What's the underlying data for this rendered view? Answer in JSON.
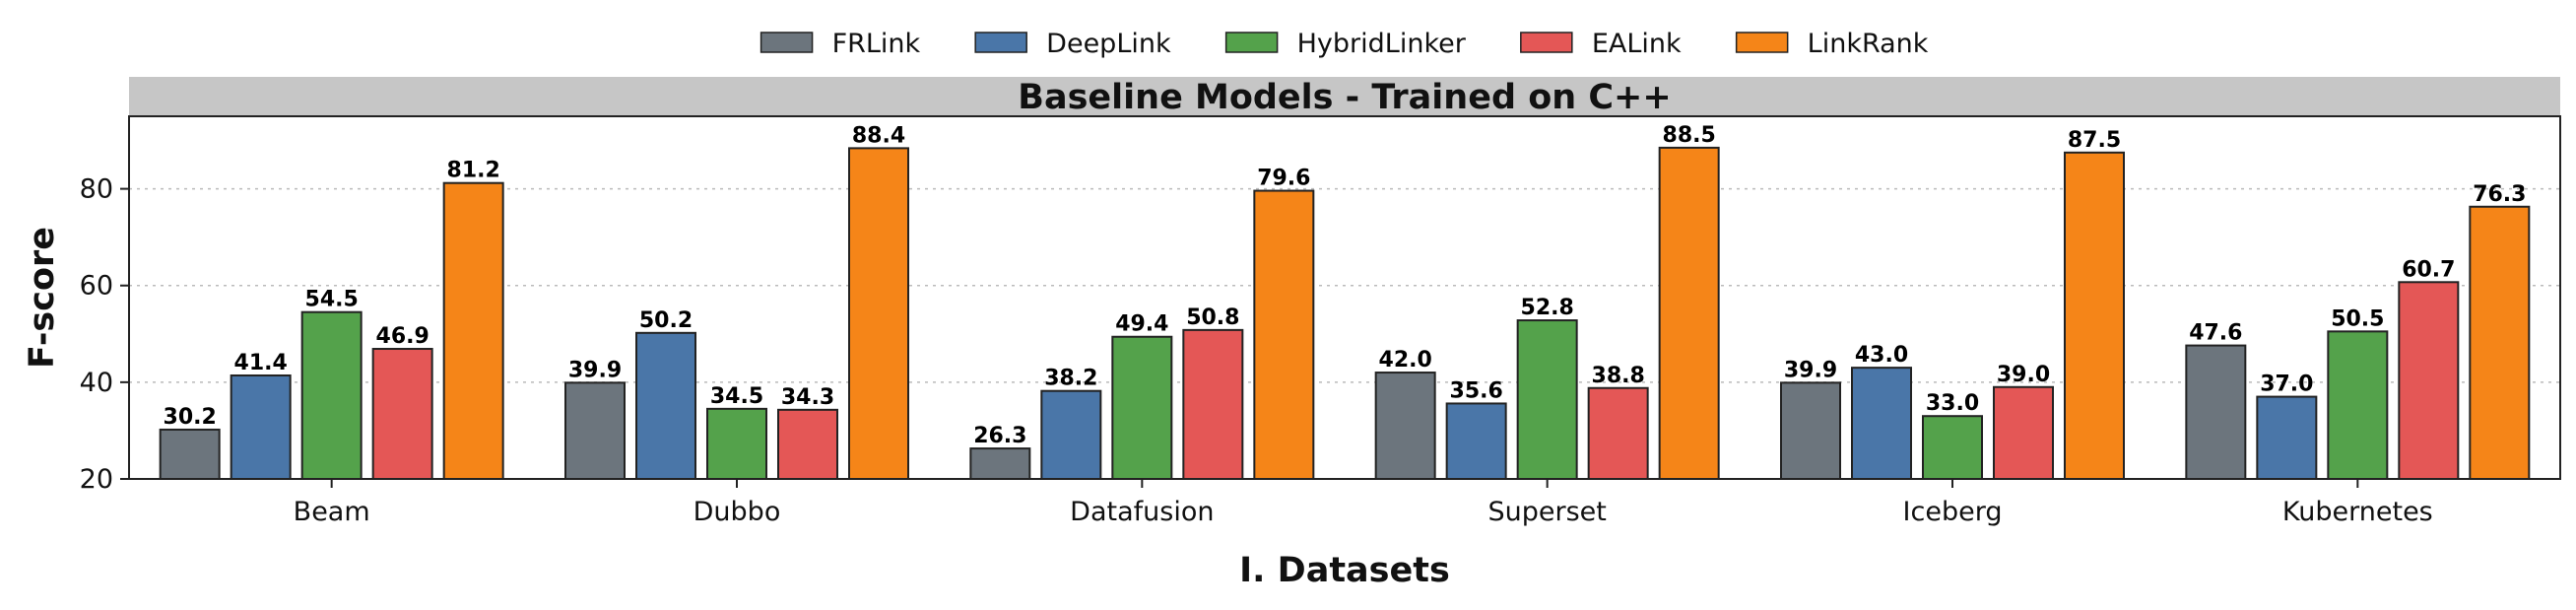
{
  "chart_data": {
    "type": "bar",
    "title": "Baseline Models - Trained on C++",
    "xlabel": "I. Datasets",
    "ylabel": "F-score",
    "ylim": [
      20,
      95
    ],
    "yticks": [
      20,
      40,
      60,
      80
    ],
    "grid": true,
    "legend_position": "top-center",
    "categories": [
      "Beam",
      "Dubbo",
      "Datafusion",
      "Superset",
      "Iceberg",
      "Kubernetes"
    ],
    "series": [
      {
        "name": "FRLink",
        "color": "#6c757d",
        "values": [
          30.2,
          39.9,
          26.3,
          42.0,
          39.9,
          47.6
        ]
      },
      {
        "name": "DeepLink",
        "color": "#4a76a8",
        "values": [
          41.4,
          50.2,
          38.2,
          35.6,
          43.0,
          37.0
        ]
      },
      {
        "name": "HybridLinker",
        "color": "#54a24b",
        "values": [
          54.5,
          34.5,
          49.4,
          52.8,
          33.0,
          50.5
        ]
      },
      {
        "name": "EALink",
        "color": "#e45756",
        "values": [
          46.9,
          34.3,
          50.8,
          38.8,
          39.0,
          60.7
        ]
      },
      {
        "name": "LinkRank",
        "color": "#f58518",
        "values": [
          81.2,
          88.4,
          79.6,
          88.5,
          87.5,
          76.3
        ]
      }
    ]
  }
}
